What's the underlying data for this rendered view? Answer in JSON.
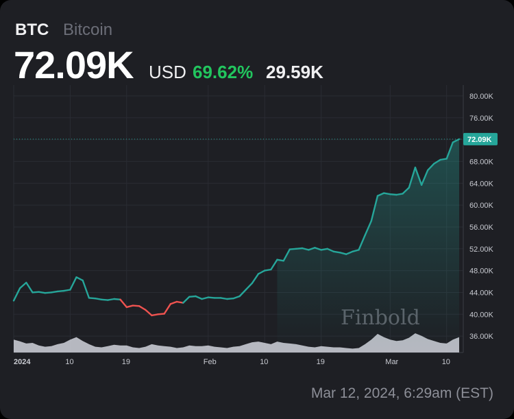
{
  "header": {
    "ticker": "BTC",
    "name": "Bitcoin",
    "price": "72.09K",
    "currency": "USD",
    "change_pct": "69.62%",
    "change_abs": "29.59K"
  },
  "footer": {
    "timestamp": "Mar 12, 2024, 6:29am (EST)"
  },
  "watermark": "Finbold",
  "colors": {
    "up": "#26a69a",
    "down": "#ef5350",
    "change_positive": "#22c55e",
    "volume": "#d1d4dc",
    "background": "#1e1f24",
    "last_price_label": "#26a69a"
  },
  "chart_data": {
    "type": "line",
    "title": "",
    "xlabel": "",
    "ylabel": "",
    "ylim": [
      33000,
      82000
    ],
    "y_axis_position": "right",
    "grid": true,
    "x_ticks": [
      "2024",
      "10",
      "19",
      "Feb",
      "10",
      "19",
      "Mar",
      "10"
    ],
    "y_ticks": [
      "80.00K",
      "76.00K",
      "72.00K",
      "68.00K",
      "64.00K",
      "60.00K",
      "56.00K",
      "52.00K",
      "48.00K",
      "44.00K",
      "40.00K",
      "36.00K"
    ],
    "last_price_label": "72.09K",
    "last_price": 72090,
    "x_range": [
      "2024-01-01",
      "2024-03-12"
    ],
    "series": [
      {
        "x": [
          "2024-01-01",
          "2024-01-02",
          "2024-01-03",
          "2024-01-04",
          "2024-01-05",
          "2024-01-06",
          "2024-01-07",
          "2024-01-08",
          "2024-01-09",
          "2024-01-10",
          "2024-01-11",
          "2024-01-12",
          "2024-01-13",
          "2024-01-14",
          "2024-01-15",
          "2024-01-16",
          "2024-01-17",
          "2024-01-18",
          "2024-01-19",
          "2024-01-20",
          "2024-01-21",
          "2024-01-22",
          "2024-01-23",
          "2024-01-24",
          "2024-01-25",
          "2024-01-26",
          "2024-01-27",
          "2024-01-28",
          "2024-01-29",
          "2024-01-30",
          "2024-01-31",
          "2024-02-01",
          "2024-02-02",
          "2024-02-03",
          "2024-02-04",
          "2024-02-05",
          "2024-02-06",
          "2024-02-07",
          "2024-02-08",
          "2024-02-09",
          "2024-02-10",
          "2024-02-11",
          "2024-02-12",
          "2024-02-13",
          "2024-02-14",
          "2024-02-15",
          "2024-02-16",
          "2024-02-17",
          "2024-02-18",
          "2024-02-19",
          "2024-02-20",
          "2024-02-21",
          "2024-02-22",
          "2024-02-23",
          "2024-02-24",
          "2024-02-25",
          "2024-02-26",
          "2024-02-27",
          "2024-02-28",
          "2024-02-29",
          "2024-03-01",
          "2024-03-02",
          "2024-03-03",
          "2024-03-04",
          "2024-03-05",
          "2024-03-06",
          "2024-03-07",
          "2024-03-08",
          "2024-03-09",
          "2024-03-10",
          "2024-03-11",
          "2024-03-12"
        ],
        "values": [
          42500,
          44800,
          45800,
          44000,
          44100,
          43900,
          44000,
          44200,
          44300,
          44500,
          46800,
          46200,
          43000,
          42900,
          42700,
          42600,
          42800,
          42700,
          41300,
          41600,
          41500,
          40800,
          39800,
          40000,
          40100,
          41900,
          42300,
          42100,
          43200,
          43300,
          42800,
          43100,
          43000,
          43000,
          42800,
          42900,
          43300,
          44500,
          45700,
          47400,
          48000,
          48200,
          50000,
          49800,
          51900,
          52000,
          52100,
          51800,
          52200,
          51800,
          52000,
          51500,
          51300,
          51000,
          51500,
          51800,
          54500,
          57100,
          61700,
          62200,
          62000,
          61900,
          62100,
          63200,
          66900,
          63700,
          66400,
          67600,
          68300,
          68500,
          71500,
          72090
        ]
      }
    ],
    "volume": [
      40,
      35,
      28,
      30,
      22,
      18,
      20,
      26,
      30,
      40,
      48,
      36,
      26,
      18,
      16,
      20,
      24,
      22,
      22,
      16,
      14,
      18,
      26,
      22,
      20,
      18,
      14,
      16,
      22,
      20,
      20,
      22,
      18,
      16,
      14,
      18,
      20,
      26,
      32,
      34,
      30,
      26,
      34,
      30,
      28,
      26,
      22,
      18,
      16,
      20,
      18,
      16,
      16,
      14,
      12,
      14,
      26,
      40,
      58,
      48,
      40,
      36,
      38,
      46,
      60,
      52,
      42,
      36,
      30,
      28,
      40,
      48
    ]
  }
}
